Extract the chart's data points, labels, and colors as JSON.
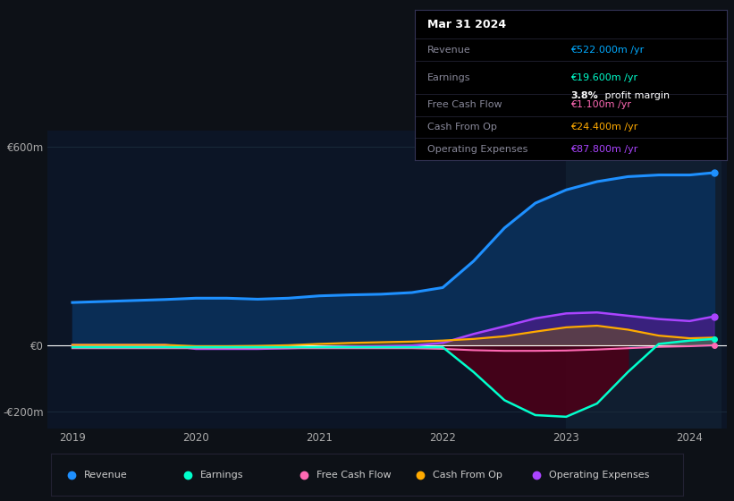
{
  "bg_color": "#0d1117",
  "plot_bg_color": "#0c1526",
  "highlight_bg_color": "#101e30",
  "grid_color": "#1a2a3a",
  "zero_line_color": "#ffffff",
  "years": [
    2019.0,
    2019.25,
    2019.5,
    2019.75,
    2020.0,
    2020.25,
    2020.5,
    2020.75,
    2021.0,
    2021.25,
    2021.5,
    2021.75,
    2022.0,
    2022.25,
    2022.5,
    2022.75,
    2023.0,
    2023.25,
    2023.5,
    2023.75,
    2024.0,
    2024.2
  ],
  "revenue": [
    130,
    133,
    136,
    139,
    143,
    143,
    140,
    143,
    150,
    153,
    155,
    160,
    175,
    255,
    355,
    430,
    470,
    495,
    510,
    515,
    515,
    522
  ],
  "earnings": [
    -5,
    -5,
    -5,
    -5,
    -5,
    -5,
    -5,
    -5,
    -5,
    -5,
    -5,
    -5,
    -5,
    -80,
    -165,
    -210,
    -215,
    -175,
    -80,
    5,
    15,
    20
  ],
  "free_cash_flow": [
    -8,
    -8,
    -8,
    -8,
    -8,
    -8,
    -8,
    -8,
    -8,
    -8,
    -8,
    -8,
    -10,
    -14,
    -16,
    -16,
    -15,
    -12,
    -8,
    -4,
    -2,
    1
  ],
  "cash_from_op": [
    2,
    2,
    2,
    2,
    -2,
    -2,
    -1,
    1,
    5,
    8,
    10,
    12,
    15,
    20,
    28,
    42,
    55,
    60,
    48,
    30,
    22,
    24
  ],
  "operating_exp": [
    2,
    2,
    2,
    2,
    -10,
    -10,
    -10,
    -8,
    -5,
    -3,
    -2,
    0,
    8,
    35,
    58,
    82,
    97,
    100,
    90,
    80,
    74,
    88
  ],
  "revenue_color": "#1e90ff",
  "revenue_fill": "#0a2d55",
  "earnings_color": "#00ffcc",
  "earnings_fill_neg": "#4a0018",
  "free_cash_flow_color": "#ff69b4",
  "cash_from_op_color": "#ffaa00",
  "operating_exp_color": "#aa44ff",
  "operating_exp_fill": "#5a1a99",
  "cash_from_op_fill": "#886600",
  "highlight_start": 2023.0,
  "highlight_end": 2024.25,
  "ylim": [
    -250,
    650
  ],
  "yticks": [
    -200,
    0,
    600
  ],
  "ytick_labels": [
    "-€200m",
    "€0",
    "€600m"
  ],
  "xlim": [
    2018.8,
    2024.3
  ],
  "xticks": [
    2019,
    2020,
    2021,
    2022,
    2023,
    2024
  ],
  "legend_items": [
    {
      "label": "Revenue",
      "color": "#1e90ff"
    },
    {
      "label": "Earnings",
      "color": "#00ffcc"
    },
    {
      "label": "Free Cash Flow",
      "color": "#ff69b4"
    },
    {
      "label": "Cash From Op",
      "color": "#ffaa00"
    },
    {
      "label": "Operating Expenses",
      "color": "#aa44ff"
    }
  ]
}
